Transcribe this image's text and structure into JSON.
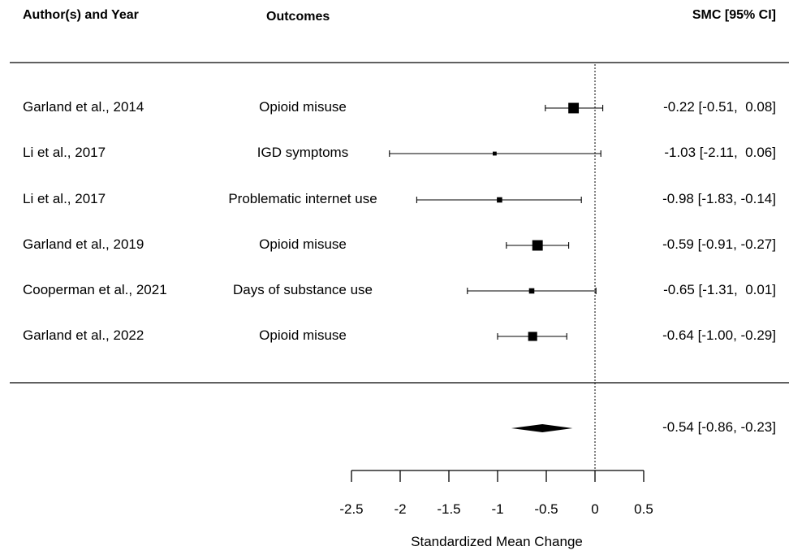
{
  "headers": {
    "author": "Author(s) and Year",
    "outcome": "Outcomes",
    "smc": "SMC [95% CI]"
  },
  "chart_data": {
    "type": "forest",
    "xlabel": "Standardized Mean Change",
    "xlim": [
      -2.5,
      0.5
    ],
    "xticks": [
      -2.5,
      -2,
      -1.5,
      -1,
      -0.5,
      0,
      0.5
    ],
    "xtick_labels": [
      "-2.5",
      "-2",
      "-1.5",
      "-1",
      "-0.5",
      "0",
      "0.5"
    ],
    "reference_line": 0,
    "studies": [
      {
        "author": "Garland et al., 2014",
        "outcome": "Opioid misuse",
        "est": -0.22,
        "lo": -0.51,
        "hi": 0.08,
        "label": "-0.22 [-0.51,  0.08]",
        "weight": 0.55
      },
      {
        "author": "Li et al., 2017",
        "outcome": "IGD symptoms",
        "est": -1.03,
        "lo": -2.11,
        "hi": 0.06,
        "label": "-1.03 [-2.11,  0.06]",
        "weight": 0.1
      },
      {
        "author": "Li et al., 2017",
        "outcome": "Problematic internet use",
        "est": -0.98,
        "lo": -1.83,
        "hi": -0.14,
        "label": "-0.98 [-1.83, -0.14]",
        "weight": 0.2
      },
      {
        "author": "Garland et al., 2019",
        "outcome": "Opioid misuse",
        "est": -0.59,
        "lo": -0.91,
        "hi": -0.27,
        "label": "-0.59 [-0.91, -0.27]",
        "weight": 0.55
      },
      {
        "author": "Cooperman et al., 2021",
        "outcome": "Days of substance use",
        "est": -0.65,
        "lo": -1.31,
        "hi": 0.01,
        "label": "-0.65 [-1.31,  0.01]",
        "weight": 0.2
      },
      {
        "author": "Garland et al., 2022",
        "outcome": "Opioid misuse",
        "est": -0.64,
        "lo": -1.0,
        "hi": -0.29,
        "label": "-0.64 [-1.00, -0.29]",
        "weight": 0.45
      }
    ],
    "summary": {
      "est": -0.54,
      "lo": -0.86,
      "hi": -0.23,
      "label": "-0.54 [-0.86, -0.23]"
    }
  }
}
